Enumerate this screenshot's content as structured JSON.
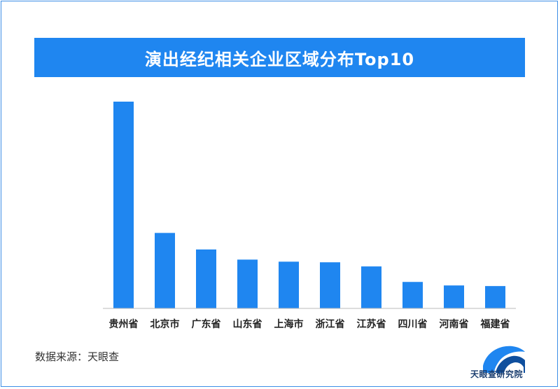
{
  "title": "演出经纪相关企业区域分布Top10",
  "source": "数据来源：天眼查",
  "logo_text": "天眼查研究院",
  "colors": {
    "bar": "#1f86f0",
    "banner": "#1f86f0",
    "axis": "#bbbbbb"
  },
  "chart_data": {
    "type": "bar",
    "categories": [
      "贵州省",
      "北京市",
      "广东省",
      "山东省",
      "上海市",
      "浙江省",
      "江苏省",
      "四川省",
      "河南省",
      "福建省"
    ],
    "values": [
      100,
      36.5,
      28.5,
      23.6,
      22.6,
      22.3,
      20.3,
      12.8,
      11.1,
      10.8
    ],
    "ylim": [
      0,
      100
    ],
    "grid": false,
    "legend": "none"
  }
}
